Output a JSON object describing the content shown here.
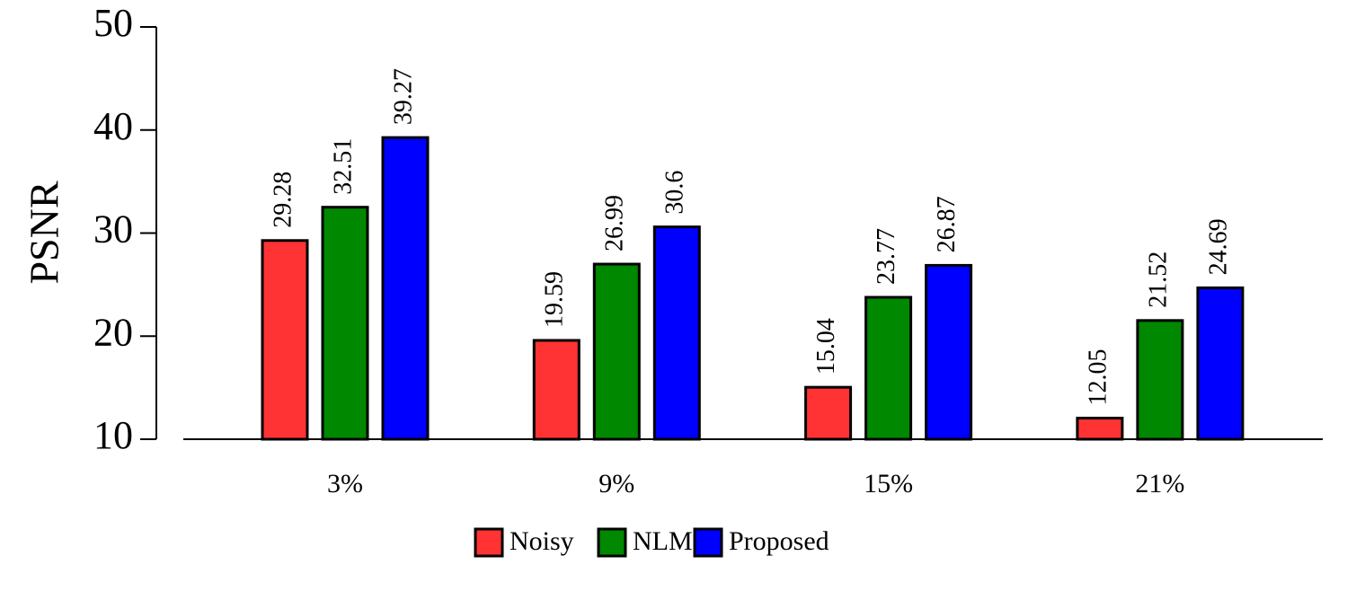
{
  "chart_data": {
    "type": "bar",
    "y_label": "PSNR",
    "categories": [
      "3%",
      "9%",
      "15%",
      "21%"
    ],
    "series": [
      {
        "name": "Noisy",
        "color": "#ff3333",
        "values": [
          29.28,
          19.59,
          15.04,
          12.05
        ]
      },
      {
        "name": "NLM",
        "color": "#008800",
        "values": [
          32.51,
          26.99,
          23.77,
          21.52
        ]
      },
      {
        "name": "Proposed",
        "color": "#0000ff",
        "values": [
          39.27,
          30.6,
          26.87,
          24.69
        ]
      }
    ],
    "ylim": [
      10,
      50
    ],
    "yticks": [
      10,
      20,
      30,
      40,
      50
    ],
    "grid": false,
    "legend": "bottom"
  }
}
